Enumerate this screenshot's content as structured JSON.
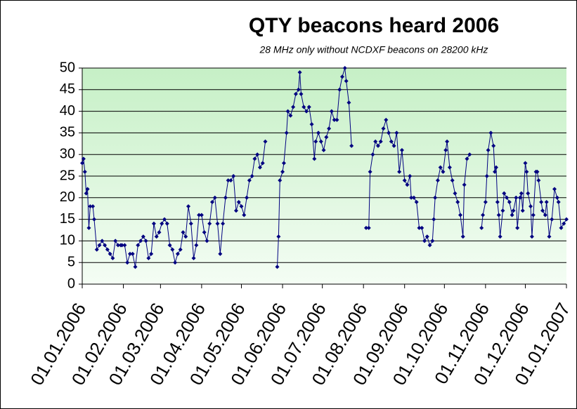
{
  "chart_data": {
    "type": "line",
    "title": "QTY beacons heard 2006",
    "subtitle": "28 MHz only without NCDXF beacons on 28200 kHz",
    "x": [
      0,
      1,
      2,
      3,
      4,
      5,
      6,
      8,
      9,
      11,
      13,
      15,
      17,
      19,
      21,
      23,
      25,
      27,
      29,
      30,
      32,
      34,
      36,
      38,
      40,
      42,
      44,
      46,
      48,
      50,
      52,
      54,
      56,
      58,
      60,
      62,
      64,
      66,
      68,
      70,
      72,
      74,
      76,
      78,
      80,
      82,
      84,
      86,
      88,
      90,
      92,
      94,
      96,
      98,
      100,
      102,
      104,
      106,
      108,
      110,
      112,
      114,
      116,
      118,
      120,
      122,
      124,
      126,
      128,
      130,
      132,
      134,
      136,
      138,
      142,
      147,
      148,
      149,
      151,
      152,
      154,
      155,
      157,
      159,
      161,
      163,
      164,
      165,
      167,
      169,
      171,
      173,
      175,
      176,
      178,
      180,
      182,
      184,
      186,
      188,
      190,
      192,
      194,
      196,
      198,
      199,
      201,
      203,
      208,
      214,
      216,
      217,
      219,
      221,
      223,
      225,
      227,
      229,
      231,
      233,
      235,
      237,
      239,
      241,
      243,
      245,
      247,
      248,
      250,
      252,
      254,
      256,
      258,
      260,
      262,
      264,
      265,
      266,
      268,
      270,
      272,
      274,
      275,
      277,
      279,
      281,
      283,
      285,
      287,
      288,
      290,
      292,
      296,
      301,
      302,
      304,
      305,
      306,
      308,
      310,
      311,
      312,
      313,
      314,
      315,
      317,
      318,
      320,
      322,
      324,
      325,
      327,
      328,
      330,
      331,
      332,
      334,
      335,
      336,
      338,
      339,
      340,
      342,
      343,
      344,
      346,
      347,
      349,
      350,
      352,
      354,
      356,
      358,
      359,
      361,
      363,
      365
    ],
    "series": [
      {
        "color": "#000080",
        "values": [
          28,
          29,
          26,
          21,
          22,
          13,
          18,
          18,
          15,
          8,
          9,
          10,
          9,
          8,
          7,
          6,
          10,
          9,
          9,
          9,
          9,
          5,
          7,
          7,
          4,
          9,
          10,
          11,
          10,
          6,
          7,
          14,
          11,
          12,
          14,
          15,
          14,
          9,
          8,
          5,
          7,
          8,
          12,
          11,
          18,
          14,
          6,
          9,
          16,
          16,
          12,
          10,
          14,
          19,
          20,
          14,
          7,
          14,
          20,
          24,
          24,
          25,
          17,
          19,
          18,
          16,
          20,
          24,
          25,
          29,
          30,
          27,
          28,
          33,
          null,
          4,
          11,
          24,
          26,
          28,
          35,
          40,
          39,
          41,
          44,
          45,
          49,
          44,
          41,
          40,
          41,
          37,
          29,
          33,
          35,
          33,
          31,
          34,
          36,
          40,
          38,
          38,
          45,
          48,
          50,
          47,
          42,
          32,
          null,
          13,
          13,
          26,
          30,
          33,
          32,
          33,
          36,
          38,
          35,
          33,
          32,
          35,
          26,
          31,
          24,
          23,
          25,
          20,
          20,
          19,
          13,
          13,
          10,
          11,
          9,
          10,
          15,
          20,
          24,
          27,
          26,
          31,
          33,
          27,
          24,
          21,
          19,
          16,
          11,
          23,
          29,
          30,
          null,
          13,
          16,
          19,
          25,
          31,
          35,
          32,
          26,
          27,
          19,
          16,
          11,
          17,
          21,
          20,
          19,
          16,
          17,
          20,
          13,
          20,
          21,
          17,
          28,
          26,
          21,
          18,
          11,
          16,
          26,
          26,
          24,
          19,
          17,
          16,
          19,
          11,
          15,
          22,
          20,
          19,
          13,
          14,
          15
        ]
      }
    ],
    "xlim": [
      0,
      365
    ],
    "xticks": [
      {
        "value": 0,
        "label": "01.01.2006"
      },
      {
        "value": 31,
        "label": "01.02.2006"
      },
      {
        "value": 59,
        "label": "01.03.2006"
      },
      {
        "value": 90,
        "label": "01.04.2006"
      },
      {
        "value": 120,
        "label": "01.05.2006"
      },
      {
        "value": 151,
        "label": "01.06.2006"
      },
      {
        "value": 181,
        "label": "01.07.2006"
      },
      {
        "value": 212,
        "label": "01.08.2006"
      },
      {
        "value": 243,
        "label": "01.09.2006"
      },
      {
        "value": 273,
        "label": "01.10.2006"
      },
      {
        "value": 304,
        "label": "01.11.2006"
      },
      {
        "value": 334,
        "label": "01.12.2006"
      },
      {
        "value": 365,
        "label": "01.01.2007"
      }
    ],
    "ylim": [
      0,
      50
    ],
    "yticks": [
      0,
      5,
      10,
      15,
      20,
      25,
      30,
      35,
      40,
      45,
      50
    ],
    "grid": true
  }
}
